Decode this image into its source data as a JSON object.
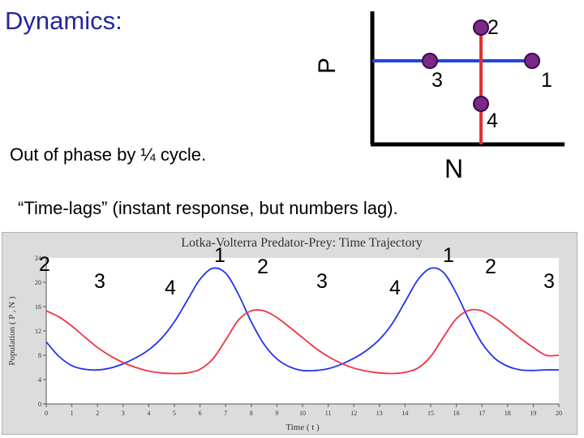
{
  "header": {
    "title": "Dynamics:"
  },
  "phase_diagram": {
    "y_axis_label": "P",
    "x_axis_label": "N",
    "points": [
      {
        "label": "2"
      },
      {
        "label": "3"
      },
      {
        "label": "1"
      },
      {
        "label": "4"
      }
    ],
    "colors": {
      "prey_line": "#2244dd",
      "predator_line": "#dd3333",
      "point_fill": "#7a2a86",
      "point_stroke": "#3a0a4a"
    }
  },
  "captions": {
    "phase": "Out of phase by ¼ cycle.",
    "lag": "“Time-lags” (instant response, but numbers lag)."
  },
  "chart_data": {
    "type": "line",
    "title": "Lotka-Volterra Predator-Prey: Time Trajectory",
    "xlabel": "Time ( t )",
    "ylabel": "Population ( P , N )",
    "xlim": [
      0,
      20
    ],
    "ylim": [
      0,
      24
    ],
    "x_ticks": [
      "0",
      "1",
      "2",
      "3",
      "4",
      "5",
      "6",
      "7",
      "8",
      "9",
      "10",
      "11",
      "12",
      "13",
      "14",
      "15",
      "16",
      "17",
      "18",
      "19",
      "20"
    ],
    "y_ticks": [
      "0",
      "4",
      "8",
      "12",
      "16",
      "20",
      "24"
    ],
    "series": [
      {
        "color": "#2233ee",
        "x": [
          0,
          0.5,
          1,
          1.5,
          2,
          2.5,
          3,
          3.5,
          4,
          4.5,
          5,
          5.5,
          6,
          6.5,
          7,
          7.5,
          8,
          8.5,
          9,
          9.5,
          10,
          10.5,
          11,
          11.5,
          12,
          12.5,
          13,
          13.5,
          14,
          14.5,
          15,
          15.5,
          16,
          16.5,
          17,
          17.5,
          18,
          18.5,
          19,
          19.5,
          20
        ],
        "values": [
          10.2,
          7.8,
          6.3,
          5.7,
          5.6,
          5.9,
          6.6,
          7.6,
          8.9,
          10.8,
          13.5,
          17.0,
          20.5,
          22.3,
          21.5,
          18.0,
          13.5,
          9.8,
          7.4,
          6.1,
          5.5,
          5.5,
          5.8,
          6.5,
          7.5,
          8.8,
          10.6,
          13.2,
          16.8,
          20.4,
          22.3,
          21.6,
          18.2,
          13.8,
          10.0,
          7.5,
          6.2,
          5.6,
          5.5,
          5.6,
          5.6
        ]
      },
      {
        "color": "#ee3344",
        "x": [
          0,
          0.5,
          1,
          1.5,
          2,
          2.5,
          3,
          3.5,
          4,
          4.5,
          5,
          5.5,
          6,
          6.5,
          7,
          7.5,
          8,
          8.5,
          9,
          9.5,
          10,
          10.5,
          11,
          11.5,
          12,
          12.5,
          13,
          13.5,
          14,
          14.5,
          15,
          15.5,
          16,
          16.5,
          17,
          17.5,
          18,
          18.5,
          19,
          19.5,
          20
        ],
        "values": [
          15.3,
          14.3,
          12.8,
          11.0,
          9.3,
          7.9,
          6.8,
          6.0,
          5.4,
          5.1,
          5.0,
          5.1,
          5.7,
          7.4,
          10.5,
          13.8,
          15.3,
          15.3,
          14.2,
          12.6,
          10.9,
          9.2,
          7.8,
          6.7,
          5.9,
          5.4,
          5.1,
          5.0,
          5.2,
          5.9,
          7.8,
          11.0,
          14.0,
          15.4,
          15.3,
          14.1,
          12.5,
          10.8,
          9.3,
          8.0,
          8.0
        ]
      }
    ]
  },
  "plot_overlay_numbers": [
    "2",
    "3",
    "4",
    "1",
    "2",
    "3",
    "4",
    "1",
    "2",
    "3"
  ]
}
